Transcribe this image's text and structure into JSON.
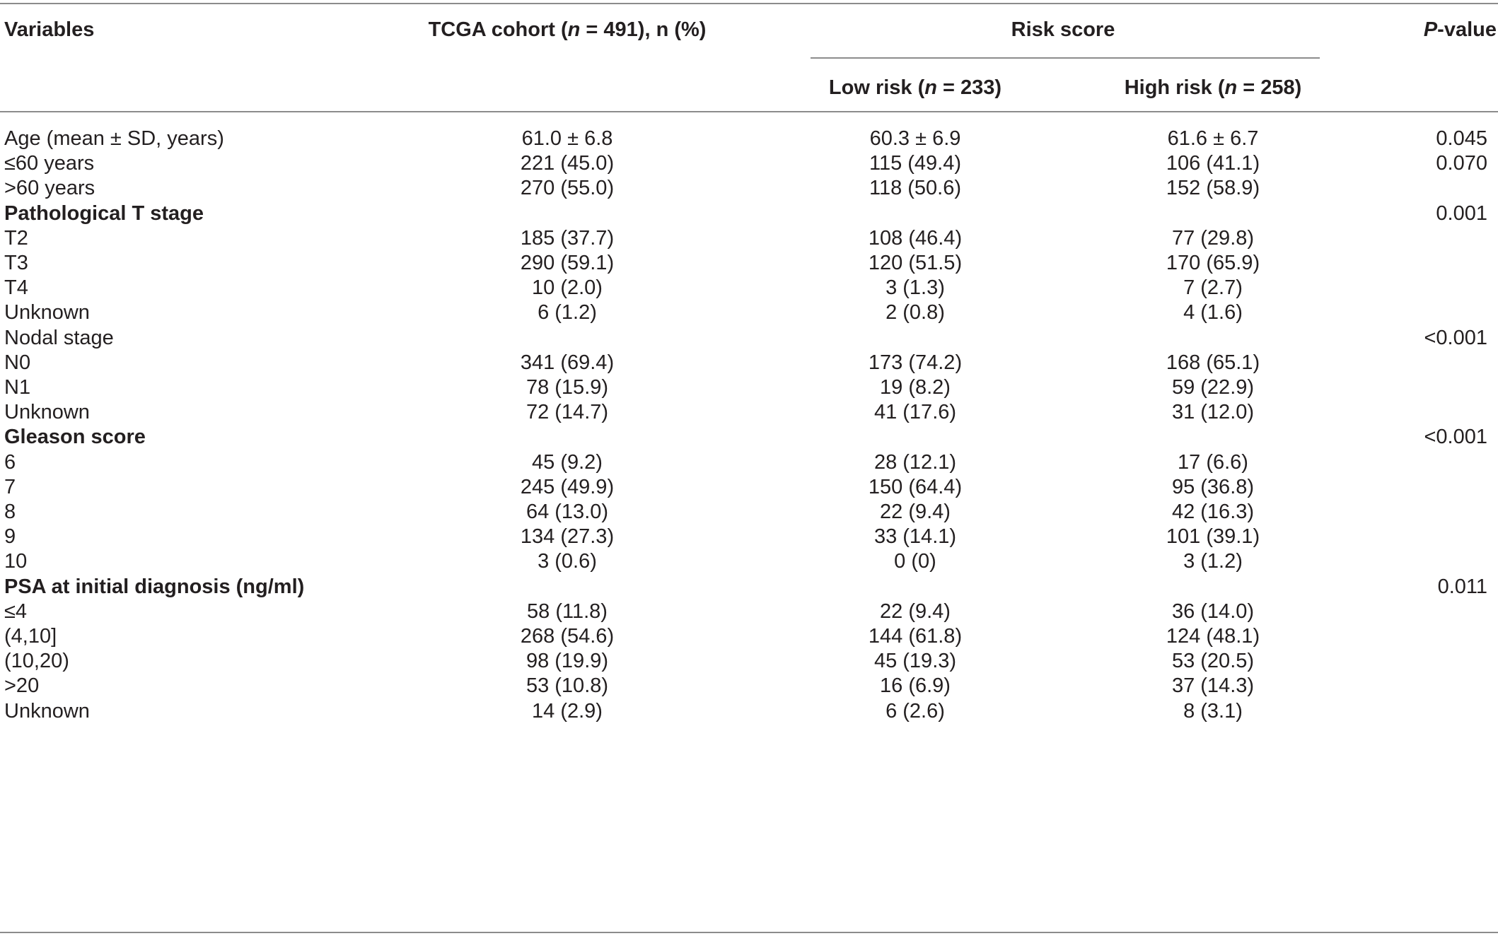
{
  "table": {
    "headers": {
      "variables": "Variables",
      "cohort_pre": "TCGA cohort (",
      "cohort_n": "n",
      "cohort_post": " = 491), n (%)",
      "risk_score": "Risk score",
      "low_pre": "Low risk (",
      "low_n": "n",
      "low_post": " = 233)",
      "high_pre": "High risk (",
      "high_n": "n",
      "high_post": " = 258)",
      "p_italic": "P",
      "p_post": "-value"
    },
    "rows": [
      {
        "label": "Age (mean ± SD, years)",
        "bold": false,
        "cohort": "61.0 ± 6.8",
        "low": "60.3 ± 6.9",
        "high": "61.6 ± 6.7",
        "p": "0.045"
      },
      {
        "label": "≤60 years",
        "bold": false,
        "cohort": "221 (45.0)",
        "low": "115 (49.4)",
        "high": "106 (41.1)",
        "p": "0.070"
      },
      {
        "label": ">60 years",
        "bold": false,
        "cohort": "270 (55.0)",
        "low": "118 (50.6)",
        "high": "152 (58.9)",
        "p": ""
      },
      {
        "label": "Pathological T stage",
        "bold": true,
        "cohort": "",
        "low": "",
        "high": "",
        "p": "0.001"
      },
      {
        "label": "T2",
        "bold": false,
        "cohort": "185 (37.7)",
        "low": "108 (46.4)",
        "high": "77 (29.8)",
        "p": ""
      },
      {
        "label": "T3",
        "bold": false,
        "cohort": "290 (59.1)",
        "low": "120 (51.5)",
        "high": "170 (65.9)",
        "p": ""
      },
      {
        "label": "T4",
        "bold": false,
        "cohort": "10 (2.0)",
        "low": "3 (1.3)",
        "high": "7 (2.7)",
        "p": ""
      },
      {
        "label": "Unknown",
        "bold": false,
        "cohort": "6 (1.2)",
        "low": "2 (0.8)",
        "high": "4 (1.6)",
        "p": ""
      },
      {
        "label": "Nodal stage",
        "bold": false,
        "cohort": "",
        "low": "",
        "high": "",
        "p": "<0.001"
      },
      {
        "label": "N0",
        "bold": false,
        "cohort": "341 (69.4)",
        "low": "173 (74.2)",
        "high": "168 (65.1)",
        "p": ""
      },
      {
        "label": "N1",
        "bold": false,
        "cohort": "78 (15.9)",
        "low": "19 (8.2)",
        "high": "59 (22.9)",
        "p": ""
      },
      {
        "label": "Unknown",
        "bold": false,
        "cohort": "72 (14.7)",
        "low": "41 (17.6)",
        "high": "31 (12.0)",
        "p": ""
      },
      {
        "label": "Gleason score",
        "bold": true,
        "cohort": "",
        "low": "",
        "high": "",
        "p": "<0.001"
      },
      {
        "label": "6",
        "bold": false,
        "cohort": "45 (9.2)",
        "low": "28 (12.1)",
        "high": "17 (6.6)",
        "p": ""
      },
      {
        "label": "7",
        "bold": false,
        "cohort": "245 (49.9)",
        "low": "150 (64.4)",
        "high": "95 (36.8)",
        "p": ""
      },
      {
        "label": "8",
        "bold": false,
        "cohort": "64 (13.0)",
        "low": "22 (9.4)",
        "high": "42 (16.3)",
        "p": ""
      },
      {
        "label": "9",
        "bold": false,
        "cohort": "134 (27.3)",
        "low": "33 (14.1)",
        "high": "101 (39.1)",
        "p": ""
      },
      {
        "label": "10",
        "bold": false,
        "cohort": "3 (0.6)",
        "low": "0 (0)",
        "high": "3 (1.2)",
        "p": ""
      },
      {
        "label": "PSA at initial diagnosis (ng/ml)",
        "bold": true,
        "cohort": "",
        "low": "",
        "high": "",
        "p": "0.011"
      },
      {
        "label": "≤4",
        "bold": false,
        "cohort": "58 (11.8)",
        "low": "22 (9.4)",
        "high": "36 (14.0)",
        "p": ""
      },
      {
        "label": "(4,10]",
        "bold": false,
        "cohort": "268 (54.6)",
        "low": "144 (61.8)",
        "high": "124 (48.1)",
        "p": ""
      },
      {
        "label": "(10,20)",
        "bold": false,
        "cohort": "98 (19.9)",
        "low": "45 (19.3)",
        "high": "53 (20.5)",
        "p": ""
      },
      {
        "label": ">20",
        "bold": false,
        "cohort": "53 (10.8)",
        "low": "16 (6.9)",
        "high": "37 (14.3)",
        "p": ""
      },
      {
        "label": "Unknown",
        "bold": false,
        "cohort": "14 (2.9)",
        "low": "6 (2.6)",
        "high": "8 (3.1)",
        "p": ""
      }
    ]
  }
}
